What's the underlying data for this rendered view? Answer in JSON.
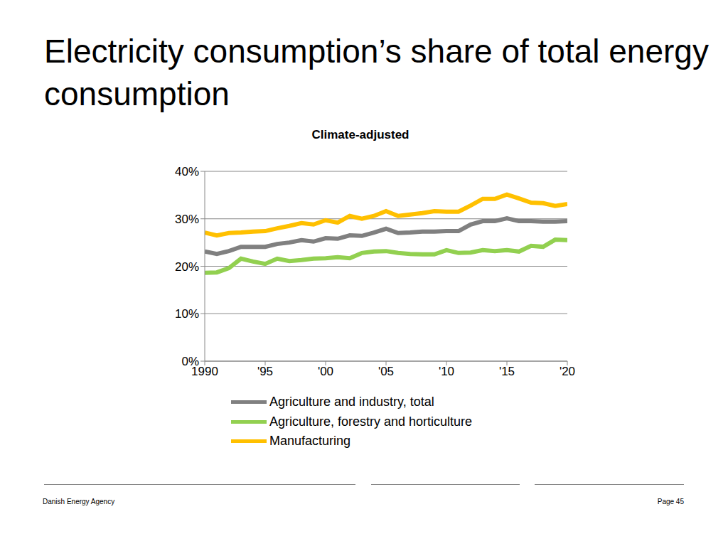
{
  "chart_data": {
    "type": "line",
    "title": "Electricity consumption’s share of total energy consumption",
    "subtitle": "Climate-adjusted",
    "x": [
      1990,
      1991,
      1992,
      1993,
      1994,
      1995,
      1996,
      1997,
      1998,
      1999,
      2000,
      2001,
      2002,
      2003,
      2004,
      2005,
      2006,
      2007,
      2008,
      2009,
      2010,
      2011,
      2012,
      2013,
      2014,
      2015,
      2016,
      2017,
      2018,
      2019,
      2020
    ],
    "series": [
      {
        "name": "Agriculture and industry, total",
        "color": "#808080",
        "values": [
          23.1,
          22.6,
          23.2,
          24.1,
          24.1,
          24.1,
          24.7,
          25.0,
          25.5,
          25.2,
          25.9,
          25.8,
          26.5,
          26.4,
          27.1,
          27.9,
          27.0,
          27.1,
          27.3,
          27.3,
          27.4,
          27.4,
          28.8,
          29.5,
          29.5,
          30.1,
          29.5,
          29.5,
          29.4,
          29.4,
          29.5
        ]
      },
      {
        "name": "Agriculture, forestry and horticulture",
        "color": "#92d050",
        "values": [
          18.6,
          18.7,
          19.6,
          21.6,
          21.0,
          20.5,
          21.6,
          21.1,
          21.3,
          21.6,
          21.7,
          21.9,
          21.7,
          22.8,
          23.1,
          23.2,
          22.8,
          22.6,
          22.5,
          22.5,
          23.4,
          22.8,
          22.9,
          23.4,
          23.2,
          23.4,
          23.1,
          24.3,
          24.1,
          25.6,
          25.5
        ]
      },
      {
        "name": "Manufacturing",
        "color": "#ffc000",
        "values": [
          27.1,
          26.5,
          27.0,
          27.1,
          27.3,
          27.4,
          28.0,
          28.5,
          29.1,
          28.8,
          29.7,
          29.2,
          30.6,
          30.0,
          30.6,
          31.6,
          30.6,
          30.9,
          31.2,
          31.6,
          31.5,
          31.5,
          32.8,
          34.2,
          34.2,
          35.1,
          34.3,
          33.4,
          33.3,
          32.7,
          33.1
        ]
      }
    ],
    "xlim": [
      1990,
      2020
    ],
    "xticks": [
      1990,
      {
        "value": 1995,
        "label": "'95"
      },
      {
        "value": 2000,
        "label": "'00"
      },
      {
        "value": 2005,
        "label": "'05"
      },
      {
        "value": 2010,
        "label": "'10"
      },
      {
        "value": 2015,
        "label": "'15"
      },
      {
        "value": 2020,
        "label": "'20"
      }
    ],
    "ylim": [
      0,
      40
    ],
    "yticks": [
      {
        "value": 0,
        "label": "0%"
      },
      {
        "value": 10,
        "label": "10%"
      },
      {
        "value": 20,
        "label": "20%"
      },
      {
        "value": 30,
        "label": "30%"
      },
      {
        "value": 40,
        "label": "40%"
      }
    ],
    "grid": true,
    "legend": "bottom"
  },
  "footer": {
    "left": "Danish Energy Agency",
    "right": "Page 45"
  }
}
